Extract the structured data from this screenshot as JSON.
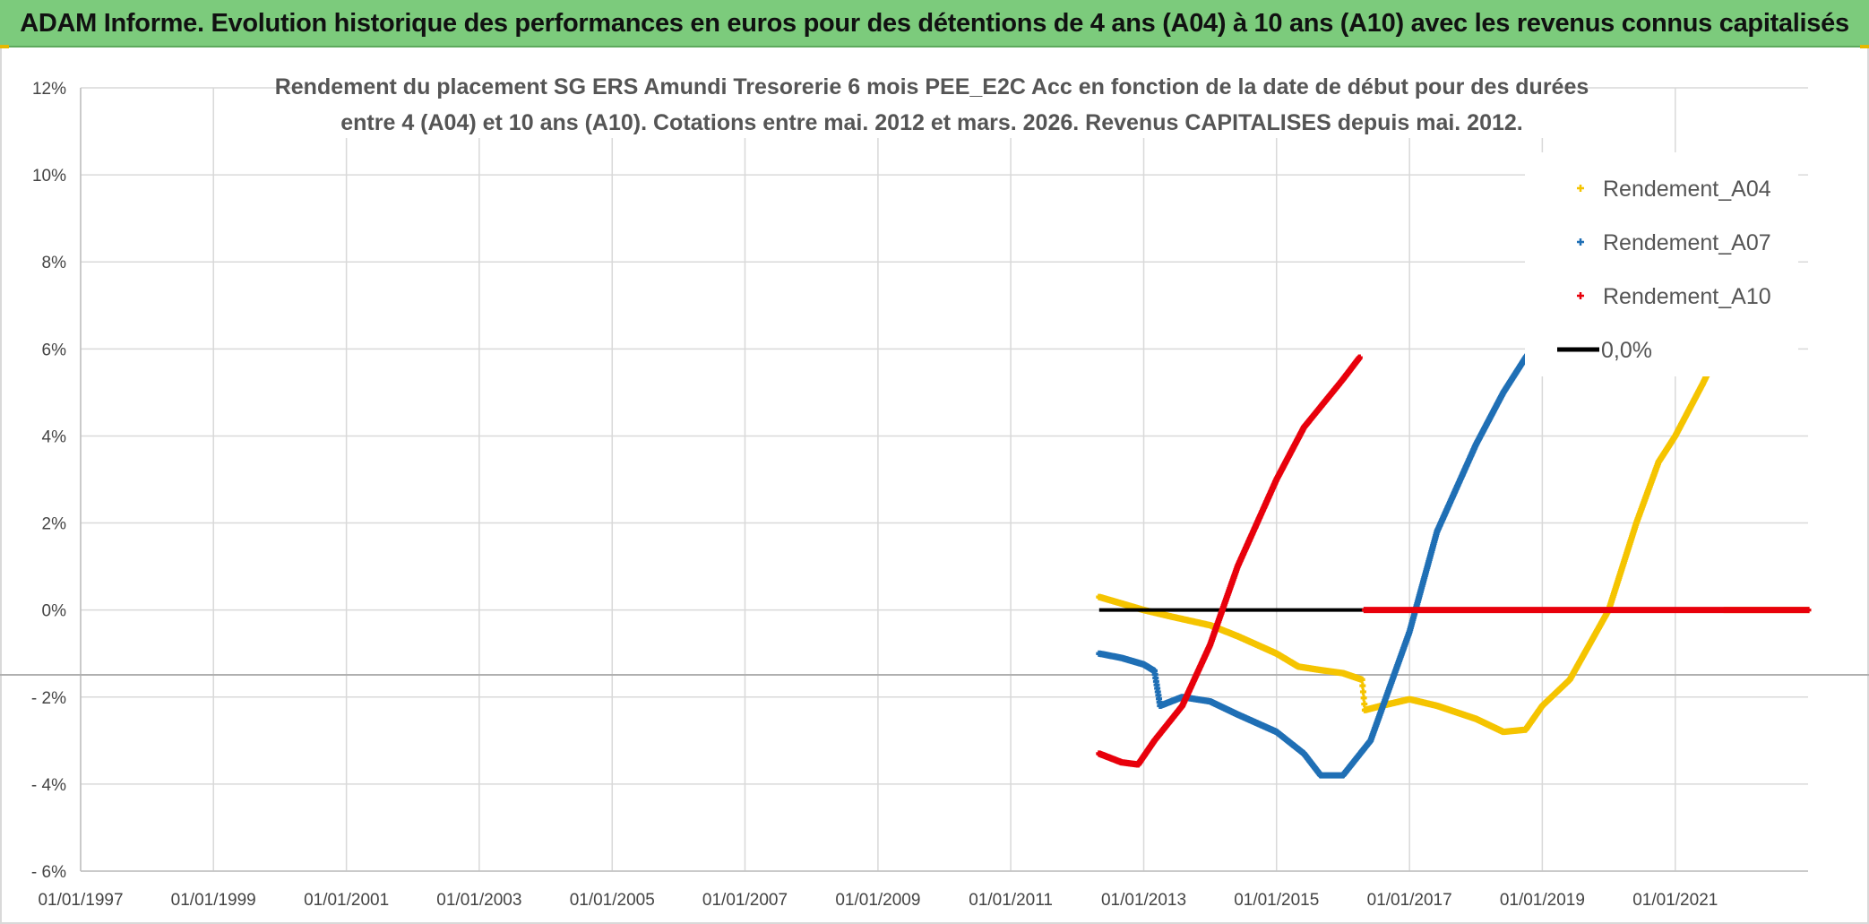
{
  "header": {
    "title": "ADAM Informe. Evolution historique des performances en euros pour des détentions de 4 ans (A04) à 10 ans (A10) avec les revenus connus capitalisés"
  },
  "chart_data": {
    "type": "scatter",
    "title_lines": [
      "Rendement du placement SG ERS Amundi Tresorerie 6 mois PEE_E2C Acc en fonction de la date de début pour des durées",
      "entre 4 (A04) et 10 ans (A10). Cotations entre mai. 2012 et mars. 2026. Revenus CAPITALISES depuis mai. 2012."
    ],
    "xlabel": "",
    "ylabel": "",
    "x_range": [
      "1997-01-01",
      "2023-01-01"
    ],
    "x_ticks": [
      "01/01/1997",
      "01/01/1999",
      "01/01/2001",
      "01/01/2003",
      "01/01/2005",
      "01/01/2007",
      "01/01/2009",
      "01/01/2011",
      "01/01/2013",
      "01/01/2015",
      "01/01/2017",
      "01/01/2019",
      "01/01/2021"
    ],
    "x_tick_dates": [
      "1997-01-01",
      "1999-01-01",
      "2001-01-01",
      "2003-01-01",
      "2005-01-01",
      "2007-01-01",
      "2009-01-01",
      "2011-01-01",
      "2013-01-01",
      "2015-01-01",
      "2017-01-01",
      "2019-01-01",
      "2021-01-01"
    ],
    "y_range": [
      -6,
      12
    ],
    "y_ticks": [
      12,
      10,
      8,
      6,
      4,
      2,
      0,
      -2,
      -4,
      -6
    ],
    "y_tick_labels": [
      "12%",
      "10%",
      "8%",
      "6%",
      "4%",
      "2%",
      "0%",
      "- 2%",
      "- 4%",
      "- 6%"
    ],
    "grid": true,
    "legend_position": "top-right",
    "series": [
      {
        "name": "Rendement_A04",
        "color": "#f5c400",
        "marker": "plus",
        "points": [
          [
            "2012-05-01",
            0.3
          ],
          [
            "2012-09-01",
            0.15
          ],
          [
            "2013-01-01",
            0.0
          ],
          [
            "2013-06-01",
            -0.15
          ],
          [
            "2014-01-01",
            -0.35
          ],
          [
            "2014-06-01",
            -0.6
          ],
          [
            "2015-01-01",
            -1.0
          ],
          [
            "2015-05-01",
            -1.3
          ],
          [
            "2015-09-01",
            -1.38
          ],
          [
            "2016-01-01",
            -1.45
          ],
          [
            "2016-04-15",
            -1.6
          ],
          [
            "2016-05-01",
            -2.3
          ],
          [
            "2016-08-01",
            -2.2
          ],
          [
            "2017-01-01",
            -2.05
          ],
          [
            "2017-06-01",
            -2.2
          ],
          [
            "2018-01-01",
            -2.5
          ],
          [
            "2018-06-01",
            -2.8
          ],
          [
            "2018-10-01",
            -2.75
          ],
          [
            "2019-01-01",
            -2.2
          ],
          [
            "2019-06-01",
            -1.6
          ],
          [
            "2020-01-01",
            0.0
          ],
          [
            "2020-06-01",
            2.0
          ],
          [
            "2020-10-01",
            3.4
          ],
          [
            "2021-01-01",
            4.0
          ],
          [
            "2021-06-01",
            5.2
          ],
          [
            "2021-09-01",
            6.0
          ]
        ],
        "points_extra": [
          [
            "2021-10-01",
            0.0
          ],
          [
            "2023-01-01",
            0.0
          ]
        ]
      },
      {
        "name": "Rendement_A07",
        "color": "#1f6fb5",
        "marker": "plus",
        "points": [
          [
            "2012-05-01",
            -1.0
          ],
          [
            "2012-09-01",
            -1.1
          ],
          [
            "2013-01-01",
            -1.25
          ],
          [
            "2013-03-01",
            -1.4
          ],
          [
            "2013-04-01",
            -2.2
          ],
          [
            "2013-08-01",
            -2.0
          ],
          [
            "2014-01-01",
            -2.1
          ],
          [
            "2014-06-01",
            -2.4
          ],
          [
            "2015-01-01",
            -2.8
          ],
          [
            "2015-06-01",
            -3.3
          ],
          [
            "2015-09-01",
            -3.8
          ],
          [
            "2016-01-01",
            -3.8
          ],
          [
            "2016-06-01",
            -3.0
          ],
          [
            "2017-01-01",
            -0.5
          ],
          [
            "2017-06-01",
            1.8
          ],
          [
            "2018-01-01",
            3.8
          ],
          [
            "2018-06-01",
            5.0
          ],
          [
            "2018-10-01",
            5.8
          ],
          [
            "2019-01-01",
            6.3
          ]
        ]
      },
      {
        "name": "Rendement_A10",
        "color": "#e8000b",
        "marker": "plus",
        "points": [
          [
            "2012-05-01",
            -3.3
          ],
          [
            "2012-09-01",
            -3.5
          ],
          [
            "2012-12-01",
            -3.55
          ],
          [
            "2013-03-01",
            -3.0
          ],
          [
            "2013-08-01",
            -2.2
          ],
          [
            "2014-01-01",
            -0.8
          ],
          [
            "2014-06-01",
            1.0
          ],
          [
            "2015-01-01",
            3.0
          ],
          [
            "2015-06-01",
            4.2
          ],
          [
            "2016-01-01",
            5.3
          ],
          [
            "2016-04-01",
            5.8
          ]
        ],
        "points_extra": [
          [
            "2016-05-01",
            0.0
          ],
          [
            "2023-01-01",
            0.0
          ]
        ]
      },
      {
        "name": "0,0%",
        "color": "#000000",
        "marker": "line",
        "points": [
          [
            "2012-05-01",
            0.0
          ],
          [
            "2016-05-01",
            0.0
          ]
        ]
      }
    ]
  }
}
